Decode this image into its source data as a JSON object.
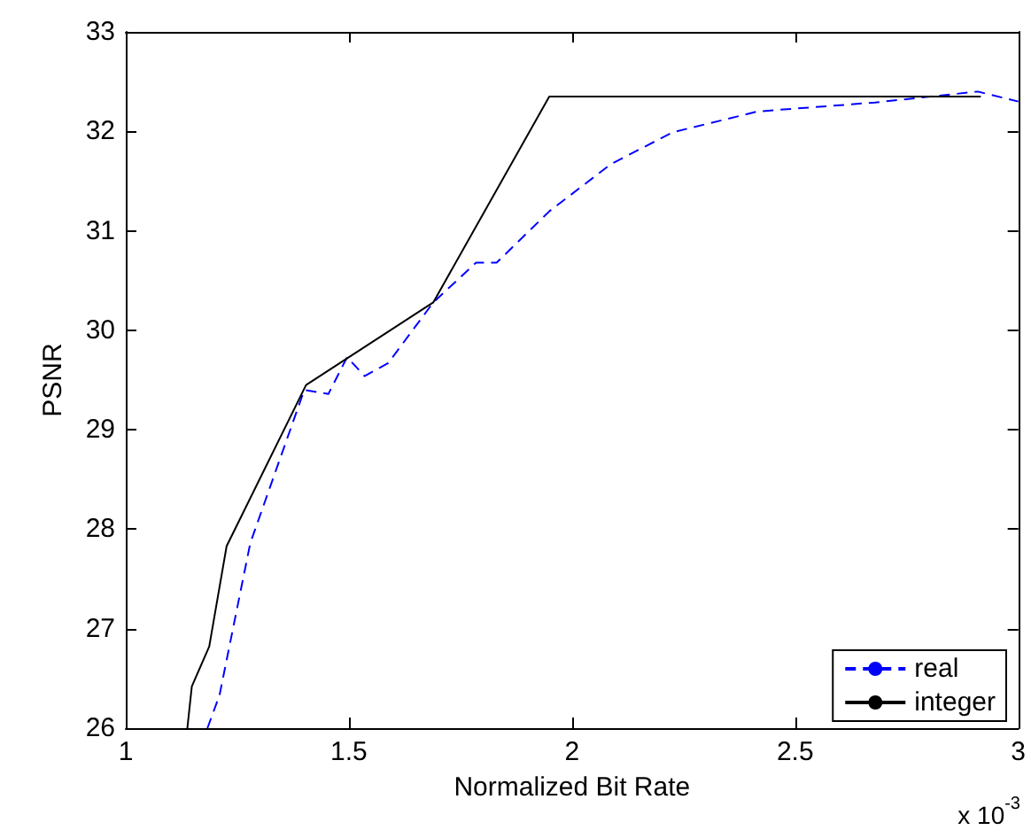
{
  "chart_data": {
    "type": "line",
    "xlabel": "Normalized Bit Rate",
    "ylabel": "PSNR",
    "annotations": [
      "x 10$^{-3}$"
    ],
    "xlim": [
      1,
      3
    ],
    "xticks": [
      1,
      1.5,
      2,
      2.5,
      3
    ],
    "ylim": [
      26,
      33
    ],
    "yticks": [
      26,
      27,
      28,
      29,
      30,
      31,
      32,
      33
    ],
    "grid": false,
    "legend": "bottom right",
    "marker": "none",
    "series": [
      {
        "name": "real",
        "color": "#0000ff",
        "line_style": "dashed",
        "x": [
          1.183,
          1.21,
          1.279,
          1.4,
          1.454,
          1.496,
          1.535,
          1.588,
          1.689,
          1.785,
          1.831,
          1.95,
          2.087,
          2.225,
          2.416,
          2.679,
          2.909,
          3.0
        ],
        "values": [
          26,
          26.33,
          27.86,
          29.4,
          29.36,
          29.73,
          29.54,
          29.67,
          30.28,
          30.68,
          30.68,
          31.2,
          31.67,
          31.99,
          32.2,
          32.29,
          32.4,
          32.3
        ]
      },
      {
        "name": "integer",
        "color": "#000000",
        "line_style": "solid",
        "x": [
          1.138,
          1.148,
          1.187,
          1.226,
          1.404,
          1.689,
          1.949,
          2.916
        ],
        "values": [
          26,
          26.42,
          26.82,
          27.83,
          29.45,
          30.28,
          32.35,
          32.35
        ]
      }
    ]
  }
}
